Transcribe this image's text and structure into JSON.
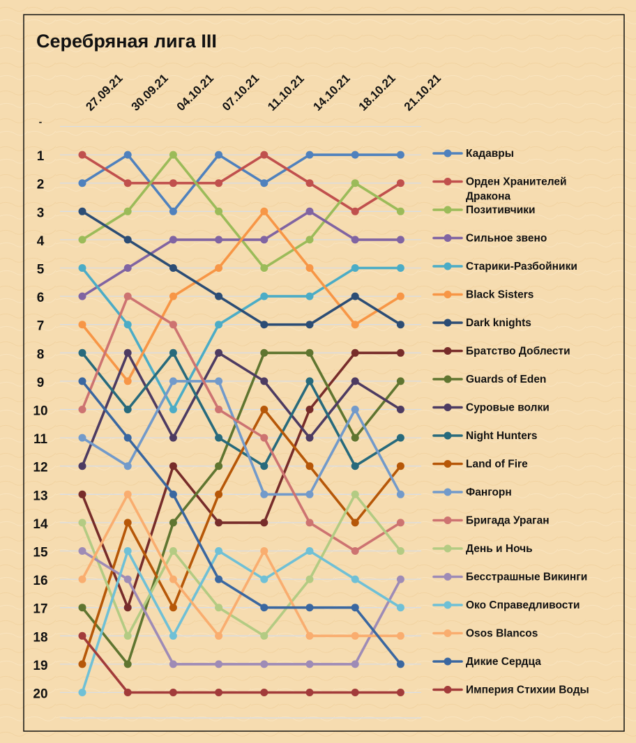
{
  "chart_data": {
    "type": "line",
    "title": "Серебряная лига III",
    "x": [
      "27.09.21",
      "30.09.21",
      "04.10.21",
      "07.10.21",
      "11.10.21",
      "14.10.21",
      "18.10.21",
      "21.10.21"
    ],
    "y_ticks": [
      "-",
      "1",
      "2",
      "3",
      "4",
      "5",
      "6",
      "7",
      "8",
      "9",
      "10",
      "11",
      "12",
      "13",
      "14",
      "15",
      "16",
      "17",
      "18",
      "19",
      "20"
    ],
    "y_inverted": true,
    "ylim": [
      0,
      20
    ],
    "grid": true,
    "legend_position": "right",
    "series": [
      {
        "name": "Кадавры",
        "color": "#4f81bd",
        "values": [
          2,
          1,
          3,
          1,
          2,
          1,
          1,
          1
        ]
      },
      {
        "name": "Орден Хранителей Дракона",
        "color": "#c0504d",
        "values": [
          1,
          2,
          2,
          2,
          1,
          2,
          3,
          2
        ]
      },
      {
        "name": "Позитивчики",
        "color": "#9bbb59",
        "values": [
          4,
          3,
          1,
          3,
          5,
          4,
          2,
          3
        ]
      },
      {
        "name": "Сильное звено",
        "color": "#8064a2",
        "values": [
          6,
          5,
          4,
          4,
          4,
          3,
          4,
          4
        ]
      },
      {
        "name": "Старики-Разбойники",
        "color": "#4bacc6",
        "values": [
          5,
          7,
          10,
          7,
          6,
          6,
          5,
          5
        ]
      },
      {
        "name": "Black Sisters",
        "color": "#f79646",
        "values": [
          7,
          9,
          6,
          5,
          3,
          5,
          7,
          6
        ]
      },
      {
        "name": "Dark knights",
        "color": "#2c4d75",
        "values": [
          3,
          4,
          5,
          6,
          7,
          7,
          6,
          7
        ]
      },
      {
        "name": "Братство Доблести",
        "color": "#772c2a",
        "values": [
          13,
          17,
          12,
          14,
          14,
          10,
          8,
          8
        ]
      },
      {
        "name": "Guards of Eden",
        "color": "#5f7530",
        "values": [
          17,
          19,
          14,
          12,
          8,
          8,
          11,
          9
        ]
      },
      {
        "name": "Суровые волки",
        "color": "#4d3b62",
        "values": [
          12,
          8,
          11,
          8,
          9,
          11,
          9,
          10
        ]
      },
      {
        "name": "Night Hunters",
        "color": "#276a7c",
        "values": [
          8,
          10,
          8,
          11,
          12,
          9,
          12,
          11
        ]
      },
      {
        "name": "Land of Fire",
        "color": "#b65708",
        "values": [
          19,
          14,
          17,
          13,
          10,
          12,
          14,
          12
        ]
      },
      {
        "name": "Фангорн",
        "color": "#729aca",
        "values": [
          11,
          12,
          9,
          9,
          13,
          13,
          10,
          13
        ]
      },
      {
        "name": "Бригада Ураган",
        "color": "#cd7371",
        "values": [
          10,
          6,
          7,
          10,
          11,
          14,
          15,
          14
        ]
      },
      {
        "name": "День и Ночь",
        "color": "#b3cb83",
        "values": [
          14,
          18,
          15,
          17,
          18,
          16,
          13,
          15
        ]
      },
      {
        "name": "Бесстрашные Викинги",
        "color": "#9e8bb6",
        "values": [
          15,
          16,
          19,
          19,
          19,
          19,
          19,
          16
        ]
      },
      {
        "name": "Око Справедливости",
        "color": "#6fc0d6",
        "values": [
          20,
          15,
          18,
          15,
          16,
          15,
          16,
          17
        ]
      },
      {
        "name": "Osos Blancos",
        "color": "#f9ad6f",
        "values": [
          16,
          13,
          16,
          18,
          15,
          18,
          18,
          18
        ]
      },
      {
        "name": "Дикие Сердца",
        "color": "#3a67a0",
        "values": [
          9,
          11,
          13,
          16,
          17,
          17,
          17,
          19
        ]
      },
      {
        "name": "Империя Стихии Воды",
        "color": "#a23b3a",
        "values": [
          18,
          20,
          20,
          20,
          20,
          20,
          20,
          20
        ]
      }
    ]
  }
}
